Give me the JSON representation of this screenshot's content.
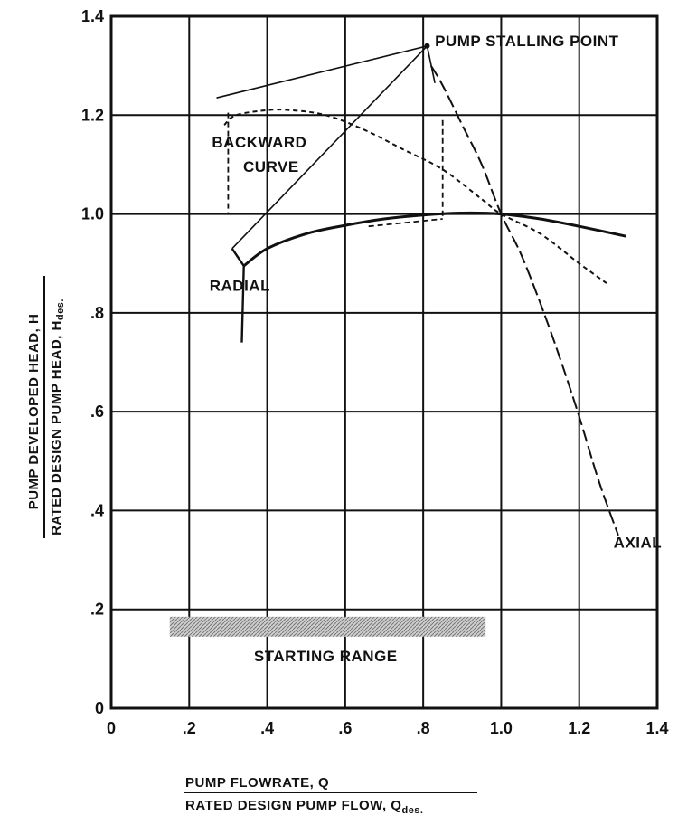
{
  "chart_data": {
    "type": "line",
    "title": "",
    "xlabel": {
      "numerator": "PUMP FLOWRATE, Q",
      "denominator": "RATED DESIGN PUMP FLOW, Q",
      "denominator_sub": "des."
    },
    "ylabel": {
      "numerator": "PUMP DEVELOPED HEAD, H",
      "denominator": "RATED DESIGN PUMP HEAD, H",
      "denominator_sub": "des."
    },
    "xlim": [
      0,
      1.4
    ],
    "ylim": [
      0,
      1.4
    ],
    "grid": true,
    "x_ticks": [
      {
        "value": 0,
        "label": "0"
      },
      {
        "value": 0.2,
        "label": ".2"
      },
      {
        "value": 0.4,
        "label": ".4"
      },
      {
        "value": 0.6,
        "label": ".6"
      },
      {
        "value": 0.8,
        "label": ".8"
      },
      {
        "value": 1.0,
        "label": "1.0"
      },
      {
        "value": 1.2,
        "label": "1.2"
      },
      {
        "value": 1.4,
        "label": "1.4"
      }
    ],
    "y_ticks": [
      {
        "value": 0,
        "label": "0"
      },
      {
        "value": 0.2,
        "label": ".2"
      },
      {
        "value": 0.4,
        "label": ".4"
      },
      {
        "value": 0.6,
        "label": ".6"
      },
      {
        "value": 0.8,
        "label": ".8"
      },
      {
        "value": 1.0,
        "label": "1.0"
      },
      {
        "value": 1.2,
        "label": "1.2"
      },
      {
        "value": 1.4,
        "label": "1.4"
      }
    ],
    "series": [
      {
        "name": "RADIAL",
        "style": "solid-thick",
        "x": [
          0.34,
          0.4,
          0.5,
          0.6,
          0.7,
          0.8,
          0.9,
          1.0,
          1.1,
          1.2,
          1.32
        ],
        "y": [
          0.895,
          0.93,
          0.96,
          0.977,
          0.99,
          0.998,
          1.002,
          1.0,
          0.99,
          0.975,
          0.955
        ]
      },
      {
        "name": "BACKWARD CURVE",
        "style": "short-dash",
        "x": [
          0.29,
          0.32,
          0.4,
          0.46,
          0.55,
          0.65,
          0.75,
          0.85,
          0.95,
          1.0,
          1.1,
          1.2,
          1.27
        ],
        "y": [
          1.18,
          1.2,
          1.21,
          1.21,
          1.2,
          1.17,
          1.13,
          1.09,
          1.03,
          1.0,
          0.96,
          0.9,
          0.86
        ]
      },
      {
        "name": "AXIAL",
        "style": "long-dash",
        "x": [
          0.82,
          0.85,
          0.9,
          0.95,
          1.0,
          1.05,
          1.1,
          1.15,
          1.2,
          1.25,
          1.3
        ],
        "y": [
          1.3,
          1.26,
          1.18,
          1.1,
          1.0,
          0.92,
          0.82,
          0.71,
          0.59,
          0.46,
          0.35
        ]
      }
    ],
    "stall_envelope": {
      "x": [
        0.27,
        0.81,
        0.31,
        0.81,
        0.83
      ],
      "y": [
        1.235,
        1.34,
        0.93,
        1.34,
        1.265
      ]
    },
    "dashed_branches": [
      {
        "x": [
          0.3,
          0.3
        ],
        "y": [
          1.205,
          1.0
        ]
      },
      {
        "x": [
          0.85,
          0.85
        ],
        "y": [
          1.19,
          0.99
        ]
      },
      {
        "x": [
          0.66,
          0.85
        ],
        "y": [
          0.975,
          0.99
        ]
      }
    ],
    "radial_start": {
      "x": [
        0.31,
        0.34,
        0.335
      ],
      "y": [
        0.93,
        0.895,
        0.74
      ]
    },
    "starting_range": {
      "x_from": 0.15,
      "x_to": 0.96,
      "y": 0.165
    },
    "annotations": [
      {
        "text": "PUMP STALLING POINT",
        "x": 0.83,
        "y": 1.34
      },
      {
        "text": "BACKWARD",
        "x": 0.38,
        "y": 1.135
      },
      {
        "text": "CURVE",
        "x": 0.41,
        "y": 1.085
      },
      {
        "text": "RADIAL",
        "x": 0.33,
        "y": 0.845
      },
      {
        "text": "AXIAL",
        "x": 1.35,
        "y": 0.325
      },
      {
        "text": "STARTING RANGE",
        "x": 0.55,
        "y": 0.095
      }
    ]
  }
}
